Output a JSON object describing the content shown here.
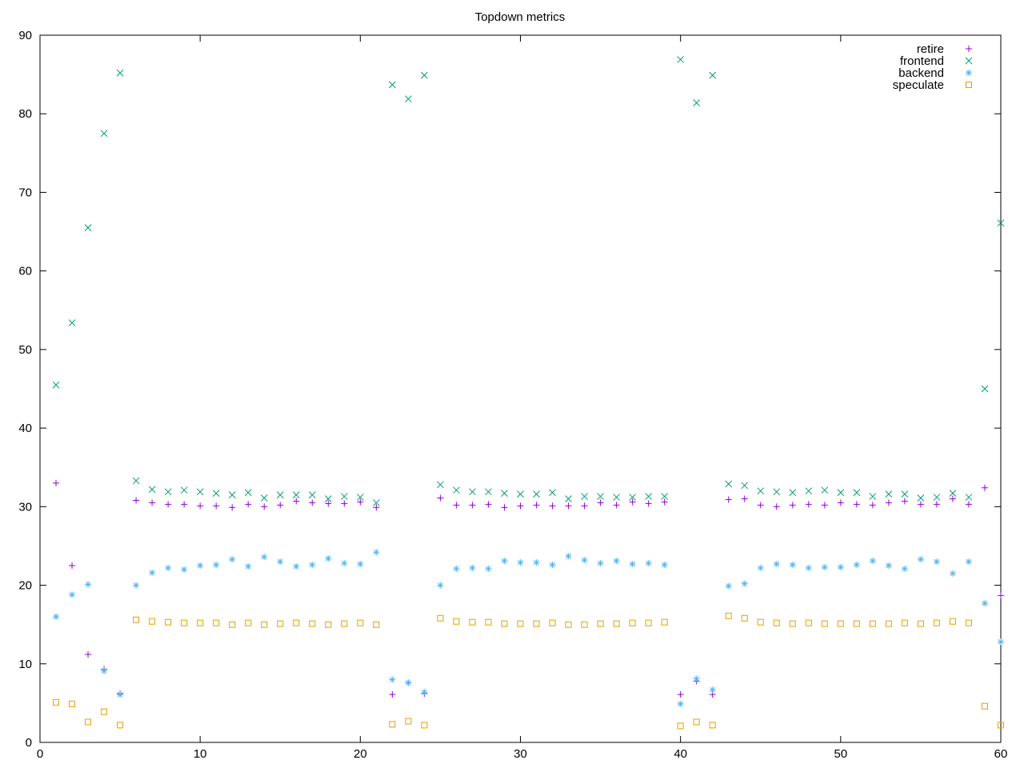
{
  "chart_data": {
    "type": "scatter",
    "title": "Topdown metrics",
    "xlabel": "",
    "ylabel": "",
    "xlim": [
      0,
      60
    ],
    "ylim": [
      0,
      90
    ],
    "xticks": [
      0,
      10,
      20,
      30,
      40,
      50,
      60
    ],
    "yticks": [
      0,
      10,
      20,
      30,
      40,
      50,
      60,
      70,
      80,
      90
    ],
    "grid": false,
    "legend": "top-right",
    "x": [
      1,
      2,
      3,
      4,
      5,
      6,
      7,
      8,
      9,
      10,
      11,
      12,
      13,
      14,
      15,
      16,
      17,
      18,
      19,
      20,
      21,
      22,
      23,
      24,
      25,
      26,
      27,
      28,
      29,
      30,
      31,
      32,
      33,
      34,
      35,
      36,
      37,
      38,
      39,
      40,
      41,
      42,
      43,
      44,
      45,
      46,
      47,
      48,
      49,
      50,
      51,
      52,
      53,
      54,
      55,
      56,
      57,
      58,
      59,
      60
    ],
    "series": [
      {
        "name": "retire",
        "marker": "plus",
        "color": "#9400d3",
        "values": [
          33.0,
          22.5,
          11.2,
          9.3,
          6.2,
          30.8,
          30.5,
          30.3,
          30.3,
          30.1,
          30.1,
          29.9,
          30.3,
          30.0,
          30.2,
          30.7,
          30.5,
          30.4,
          30.4,
          30.6,
          29.9,
          6.1,
          7.6,
          6.2,
          31.1,
          30.2,
          30.2,
          30.3,
          29.9,
          30.1,
          30.2,
          30.1,
          30.1,
          30.1,
          30.5,
          30.2,
          30.6,
          30.4,
          30.6,
          6.1,
          7.8,
          6.1,
          30.9,
          31.0,
          30.2,
          30.0,
          30.2,
          30.3,
          30.2,
          30.5,
          30.3,
          30.2,
          30.5,
          30.7,
          30.3,
          30.3,
          31.0,
          30.3,
          32.4,
          18.7
        ]
      },
      {
        "name": "frontend",
        "marker": "cross",
        "color": "#009e73",
        "values": [
          45.5,
          53.4,
          65.5,
          77.5,
          85.2,
          33.3,
          32.2,
          31.9,
          32.1,
          31.9,
          31.7,
          31.5,
          31.8,
          31.1,
          31.5,
          31.5,
          31.5,
          31.0,
          31.3,
          31.2,
          30.5,
          83.7,
          81.9,
          84.9,
          32.8,
          32.1,
          31.9,
          31.9,
          31.7,
          31.6,
          31.6,
          31.8,
          31.0,
          31.3,
          31.3,
          31.2,
          31.2,
          31.3,
          31.3,
          86.9,
          81.4,
          84.9,
          32.9,
          32.7,
          32.0,
          31.9,
          31.8,
          32.0,
          32.1,
          31.8,
          31.8,
          31.3,
          31.6,
          31.6,
          31.1,
          31.2,
          31.7,
          31.2,
          45.0,
          66.1
        ]
      },
      {
        "name": "backend",
        "marker": "star",
        "color": "#56b4e9",
        "values": [
          16.0,
          18.8,
          20.1,
          9.1,
          6.1,
          20.0,
          21.6,
          22.2,
          22.0,
          22.5,
          22.6,
          23.3,
          22.4,
          23.6,
          23.0,
          22.4,
          22.6,
          23.4,
          22.8,
          22.7,
          24.2,
          8.0,
          7.6,
          6.4,
          20.0,
          22.1,
          22.2,
          22.1,
          23.1,
          22.9,
          22.9,
          22.6,
          23.7,
          23.2,
          22.8,
          23.1,
          22.7,
          22.8,
          22.6,
          4.9,
          8.1,
          6.7,
          19.9,
          20.2,
          22.2,
          22.7,
          22.6,
          22.2,
          22.3,
          22.3,
          22.6,
          23.1,
          22.5,
          22.1,
          23.3,
          23.0,
          21.5,
          23.0,
          17.7,
          12.8
        ]
      },
      {
        "name": "speculate",
        "marker": "square",
        "color": "#e69f00",
        "values": [
          5.1,
          4.9,
          2.6,
          3.9,
          2.2,
          15.6,
          15.4,
          15.3,
          15.2,
          15.2,
          15.2,
          15.0,
          15.2,
          15.0,
          15.1,
          15.2,
          15.1,
          15.0,
          15.1,
          15.2,
          15.0,
          2.3,
          2.7,
          2.2,
          15.8,
          15.4,
          15.3,
          15.3,
          15.1,
          15.1,
          15.1,
          15.2,
          15.0,
          15.0,
          15.1,
          15.1,
          15.2,
          15.2,
          15.3,
          2.1,
          2.6,
          2.2,
          16.1,
          15.8,
          15.3,
          15.2,
          15.1,
          15.2,
          15.1,
          15.1,
          15.1,
          15.1,
          15.1,
          15.2,
          15.1,
          15.2,
          15.4,
          15.2,
          4.6,
          2.2
        ]
      }
    ]
  }
}
